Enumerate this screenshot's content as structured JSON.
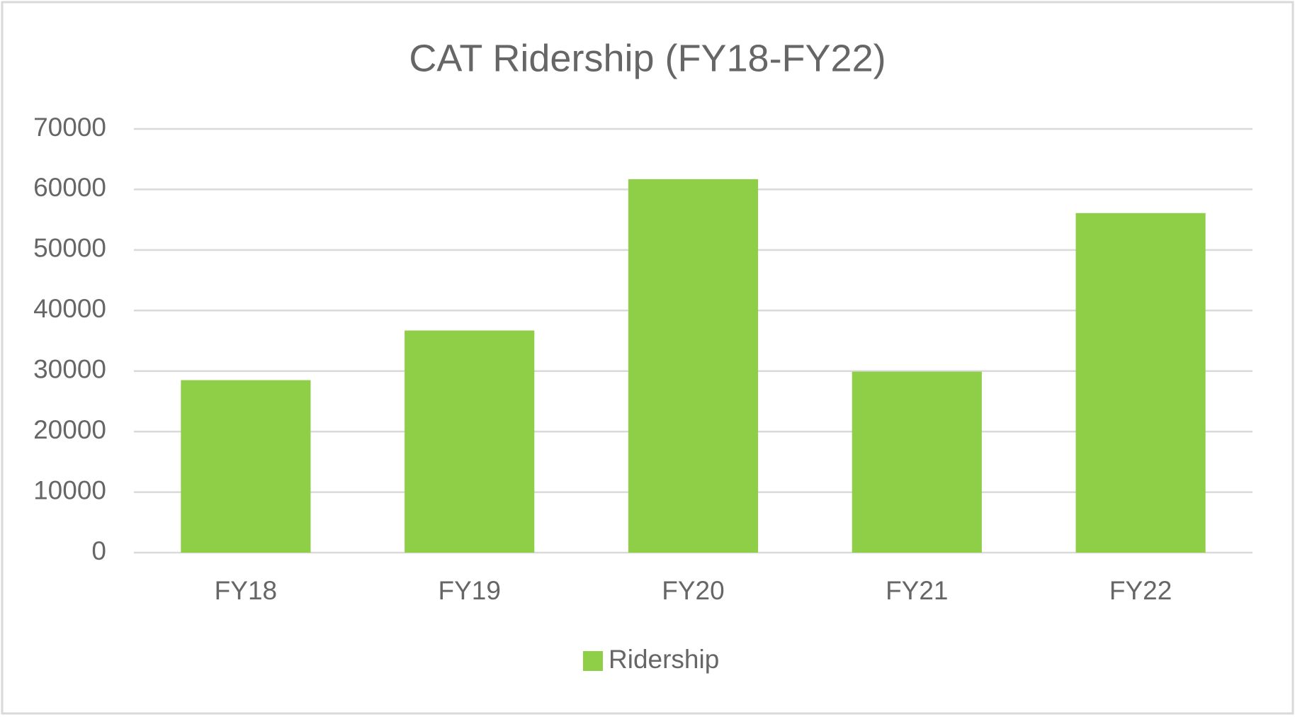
{
  "chart_data": {
    "type": "bar",
    "title": "CAT Ridership (FY18-FY22)",
    "categories": [
      "FY18",
      "FY19",
      "FY20",
      "FY21",
      "FY22"
    ],
    "series": [
      {
        "name": "Ridership",
        "color": "#8fce47",
        "values": [
          28500,
          36700,
          61700,
          29900,
          56100
        ]
      }
    ],
    "ylim": [
      0,
      70000
    ],
    "yticks": [
      0,
      10000,
      20000,
      30000,
      40000,
      50000,
      60000,
      70000
    ],
    "grid": true,
    "legend": "bottom"
  }
}
